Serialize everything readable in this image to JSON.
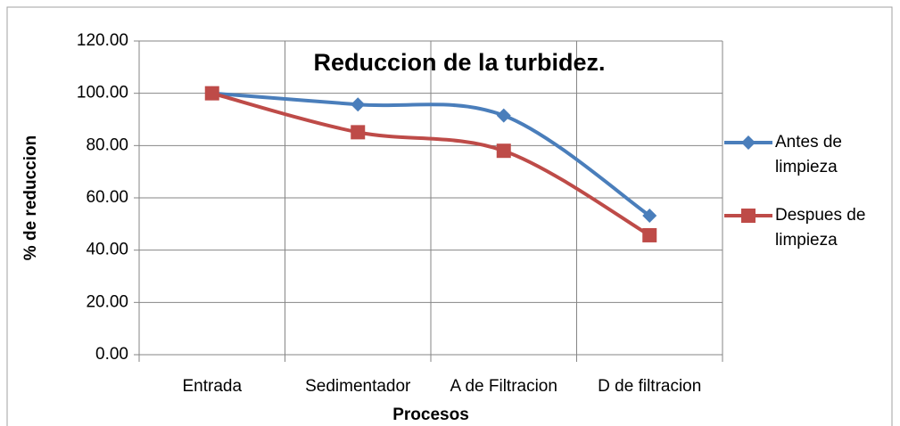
{
  "chart_data": {
    "type": "line",
    "title": "Reduccion de la turbidez.",
    "x_label": "Procesos",
    "y_label": "% de reduccion",
    "categories": [
      "Entrada",
      "Sedimentador",
      "A de Filtracion",
      "D de filtracion"
    ],
    "series": [
      {
        "name": "Antes de limpieza",
        "color": "#4a7ebb",
        "marker": "diamond",
        "values": [
          100,
          95.7,
          91.5,
          53.2
        ]
      },
      {
        "name": "Despues de limpieza",
        "color": "#be4b48",
        "marker": "square",
        "values": [
          100,
          85.1,
          78.0,
          45.7
        ]
      }
    ],
    "ylim": [
      0,
      120
    ],
    "yticks": [
      {
        "value": 0,
        "label": "0.00"
      },
      {
        "value": 20,
        "label": "20.00"
      },
      {
        "value": 40,
        "label": "40.00"
      },
      {
        "value": 60,
        "label": "60.00"
      },
      {
        "value": 80,
        "label": "80.00"
      },
      {
        "value": 100,
        "label": "100.00"
      },
      {
        "value": 120,
        "label": "120.00"
      }
    ],
    "grid": true,
    "smooth": true,
    "legend": "right"
  }
}
